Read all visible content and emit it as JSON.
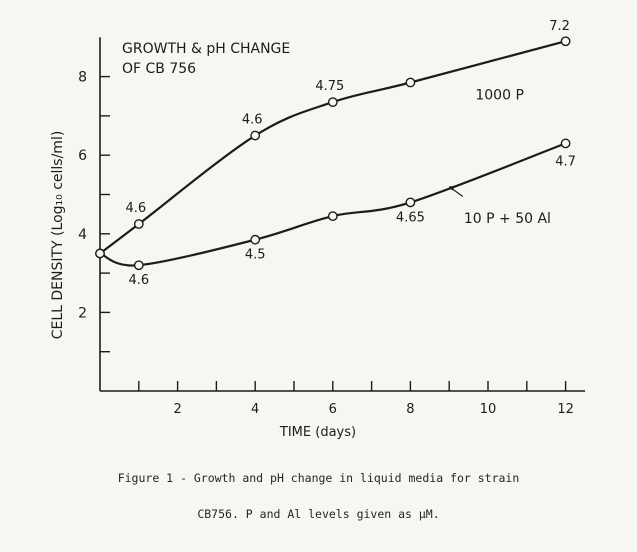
{
  "chart_data": {
    "type": "line",
    "title": "GROWTH & pH CHANGE",
    "subtitle": "OF CB 756",
    "xlabel": "TIME (days)",
    "ylabel": "CELL DENSITY (Log₁₀ cells/ml)",
    "xlim": [
      0,
      12.5
    ],
    "ylim": [
      0,
      9
    ],
    "x_ticks": [
      2,
      4,
      6,
      8,
      10,
      12
    ],
    "y_ticks": [
      2,
      4,
      6,
      8
    ],
    "grid": false,
    "series": [
      {
        "name": "1000 P",
        "x": [
          0,
          1,
          4,
          6,
          8,
          12
        ],
        "y": [
          3.5,
          4.25,
          6.5,
          7.35,
          7.85,
          8.9
        ],
        "point_labels": [
          "",
          "4.6",
          "4.6",
          "4.75",
          "",
          "7.2"
        ]
      },
      {
        "name": "10 P + 50 Al",
        "x": [
          0,
          1,
          4,
          6,
          8,
          12
        ],
        "y": [
          3.5,
          3.2,
          3.85,
          4.45,
          4.8,
          6.3
        ],
        "point_labels": [
          "",
          "4.6",
          "4.5",
          "",
          "4.65",
          "4.7"
        ]
      }
    ]
  },
  "caption": {
    "line1": "Figure 1 - Growth and pH change in liquid media for strain",
    "line2": "CB756.  P and Al levels given as μM."
  }
}
